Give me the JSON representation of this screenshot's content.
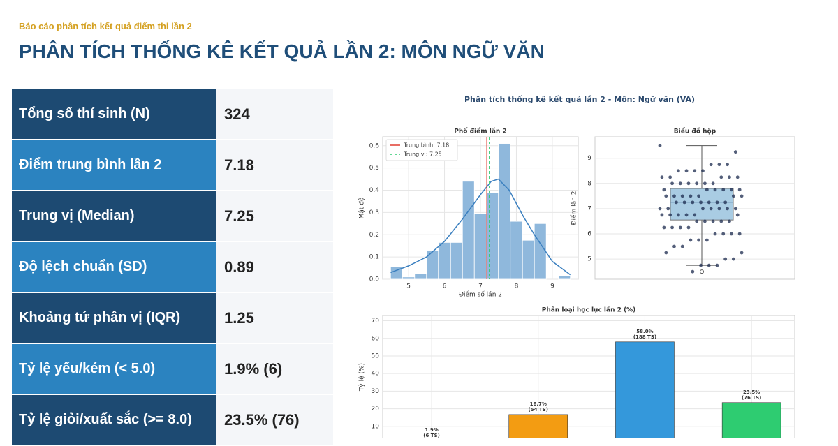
{
  "header": {
    "subtitle": "Báo cáo phân tích kết quả điểm thi lần 2",
    "title": "PHÂN TÍCH THỐNG KÊ KẾT QUẢ LẦN 2: MÔN NGỮ VĂN"
  },
  "table": {
    "rows": [
      [
        "Tổng số thí sinh (N)",
        "324"
      ],
      [
        "Điểm trung bình lần 2",
        "7.18"
      ],
      [
        "Trung vị (Median)",
        "7.25"
      ],
      [
        "Độ lệch chuẩn (SD)",
        "0.89"
      ],
      [
        "Khoảng tứ phân vị (IQR)",
        "1.25"
      ],
      [
        "Tỷ lệ yếu/kém (< 5.0)",
        "1.9% (6)"
      ],
      [
        "Tỷ lệ giỏi/xuất sắc (>= 8.0)",
        "23.5% (76)"
      ]
    ]
  },
  "figure_title": "Phân tích thống kê kết quả lần 2 - Môn: Ngữ văn (VA)",
  "chart_data": [
    {
      "type": "histogram",
      "title": "Phổ điểm lần 2",
      "xlabel": "Điểm số lần 2",
      "ylabel": "Mật độ",
      "bins": [
        4.5,
        4.83,
        5.17,
        5.5,
        5.83,
        6.17,
        6.5,
        6.83,
        7.17,
        7.5,
        7.83,
        8.17,
        8.5,
        8.83,
        9.17,
        9.5
      ],
      "counts": [
        0.055,
        0.01,
        0.025,
        0.13,
        0.165,
        0.165,
        0.44,
        0.295,
        0.39,
        0.61,
        0.26,
        0.175,
        0.25,
        0,
        0.015
      ],
      "color": "#8fb8dc",
      "kde": {
        "x": [
          4.5,
          5,
          5.5,
          6,
          6.5,
          7,
          7.3,
          7.5,
          7.8,
          8.2,
          8.5,
          9,
          9.5
        ],
        "values": [
          0.03,
          0.06,
          0.1,
          0.17,
          0.27,
          0.38,
          0.44,
          0.45,
          0.4,
          0.28,
          0.2,
          0.08,
          0.02
        ],
        "color": "#3a7fbf"
      },
      "lines": [
        {
          "name": "Trung bình: 7.18",
          "value": 7.18,
          "color": "#e03c31",
          "style": "solid"
        },
        {
          "name": "Trung vị: 7.25",
          "value": 7.25,
          "color": "#2ecc71",
          "style": "dashed"
        }
      ],
      "xlim": [
        4.28,
        9.72
      ],
      "ylim": [
        0,
        0.64
      ],
      "xticks": [
        5,
        6,
        7,
        8,
        9
      ],
      "yticks": [
        {
          "value": 0,
          "label": "0.0"
        },
        0.1,
        0.2,
        0.3,
        0.4,
        0.5,
        0.6
      ],
      "grid": true,
      "legend": "upper left"
    },
    {
      "type": "box",
      "title": "Biểu đồ hộp",
      "ylabel": "Điểm lần 2",
      "ylim": [
        4.2,
        9.85
      ],
      "yticks": [
        5,
        6,
        7,
        8,
        9
      ],
      "whisker_low": 4.75,
      "q1": 6.55,
      "median": 7.25,
      "q3": 7.8,
      "whisker_high": 9.5,
      "outliers": [
        4.5
      ],
      "points": [
        9.5,
        9.25,
        8.75,
        8.75,
        8.75,
        8.5,
        8.5,
        8.5,
        8.5,
        8.25,
        8.25,
        8.25,
        8.25,
        8.25,
        8,
        8,
        8,
        8,
        8,
        8,
        7.75,
        7.75,
        7.75,
        7.75,
        7.75,
        7.75,
        7.5,
        7.5,
        7.5,
        7.5,
        7.5,
        7.5,
        7.5,
        7.25,
        7.25,
        7.25,
        7.25,
        7.25,
        7.25,
        7.25,
        7,
        7,
        7,
        7,
        7,
        7,
        7,
        6.75,
        6.75,
        6.75,
        6.75,
        6.75,
        6.75,
        6.5,
        6.5,
        6.5,
        6.5,
        6.5,
        6.25,
        6.25,
        6.25,
        6.25,
        6,
        6,
        6,
        6,
        5.75,
        5.75,
        5.75,
        5.5,
        5.5,
        5.25,
        5.25,
        5,
        5,
        4.75,
        4.75,
        4.75,
        4.5
      ],
      "box_color": "#a9cce3",
      "point_color": "#1b2a4e",
      "grid": true
    },
    {
      "type": "bar",
      "title": "Phân loại học lực lần 2 (%)",
      "ylabel": "Tỷ lệ (%)",
      "values": [
        1.9,
        16.7,
        58.0,
        23.5
      ],
      "value_labels": [
        "1.9%",
        "16.7%",
        "58.0%",
        "23.5%"
      ],
      "count_labels": [
        "(6 TS)",
        "(54 TS)",
        "(188 TS)",
        "(76 TS)"
      ],
      "colors": [
        "#e74c3c",
        "#f39c12",
        "#3498db",
        "#2ecc71"
      ],
      "ylim": [
        0,
        73
      ],
      "yticks": [
        10,
        20,
        30,
        40,
        50,
        60,
        70
      ],
      "grid": true
    }
  ]
}
